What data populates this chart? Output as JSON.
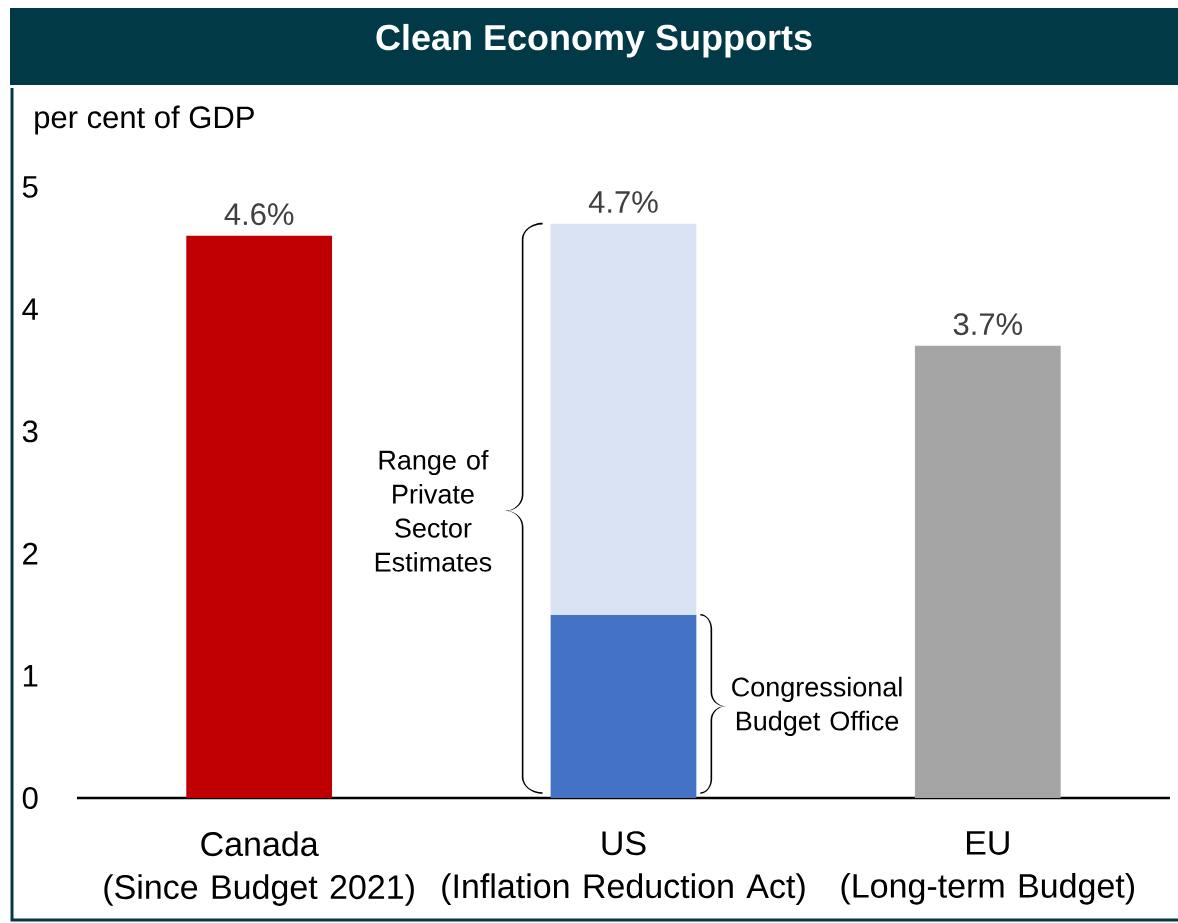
{
  "chart_data": {
    "type": "bar",
    "title": "Clean Economy Supports",
    "ylabel": "per cent of GDP",
    "categories": [
      "Canada\n(Since Budget 2021)",
      "US\n(Inflation Reduction Act)",
      "EU\n(Long-term Budget)"
    ],
    "series": [
      {
        "values": [
          4.6,
          1.5,
          3.7
        ],
        "colors": [
          "#c00000",
          "#4472c4",
          "#a5a5a5"
        ]
      },
      {
        "values": [
          null,
          3.2,
          null
        ],
        "color": "#dae3f3"
      }
    ],
    "stacked": true,
    "ylim": [
      0,
      5
    ],
    "yticks": [
      0,
      1,
      2,
      3,
      4,
      5
    ],
    "totals": [
      "4.6%",
      "4.7%",
      "3.7%"
    ],
    "annotations": [
      "Range of Private Sector Estimates",
      "Congressional Budget Office"
    ]
  }
}
